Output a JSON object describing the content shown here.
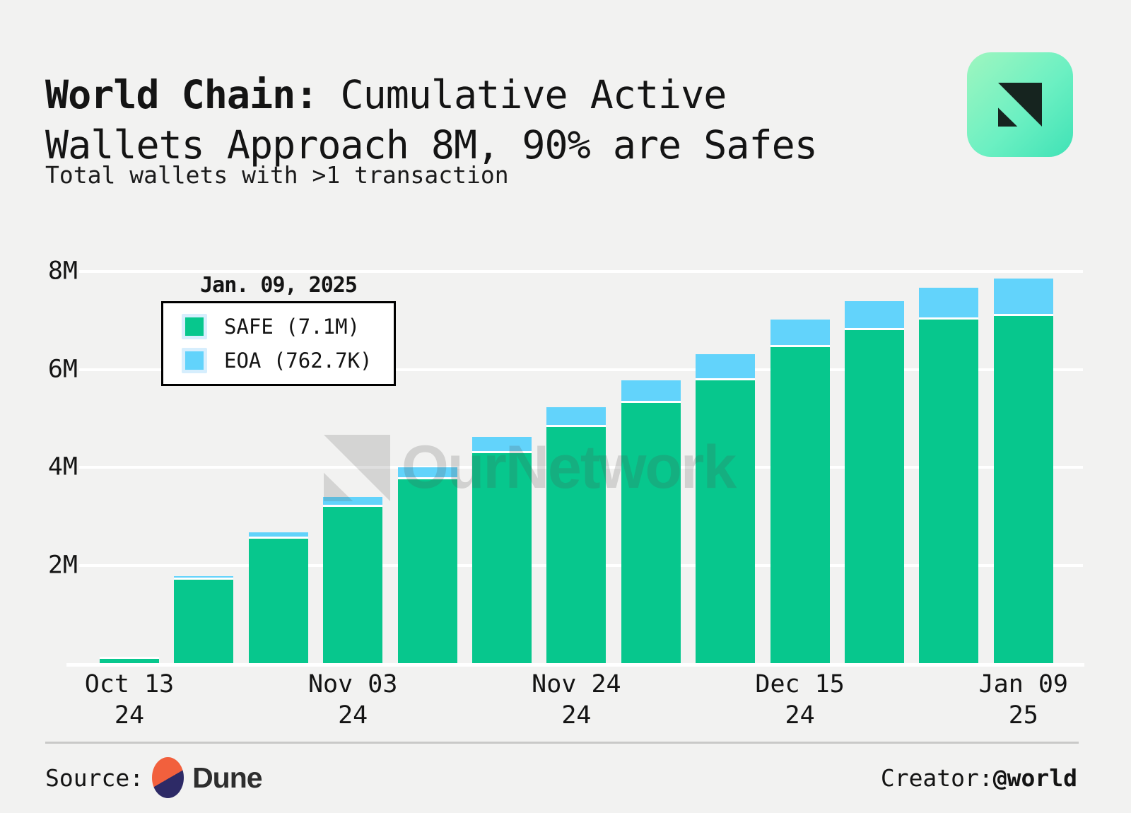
{
  "header": {
    "title_bold": "World Chain:",
    "title_regular": " Cumulative Active Wallets Approach 8M, 90% are Safes",
    "subtitle": "Total wallets with >1 transaction"
  },
  "tooltip": {
    "date": "Jan. 09, 2025",
    "items": [
      {
        "label": "SAFE (7.1M)",
        "color": "#07c78d"
      },
      {
        "label": "EOA (762.7K)",
        "color": "#62d3fb"
      }
    ]
  },
  "watermark": {
    "text": "OurNetwork"
  },
  "footer": {
    "source_label": "Source:",
    "source_name": "Dune",
    "creator_label": "Creator: ",
    "creator_handle": "@world"
  },
  "colors": {
    "background": "#f2f2f1",
    "safe_green": "#07c78d",
    "eoa_blue": "#62d3fb",
    "gridline": "#ffffff",
    "tooltip_border": "#000000",
    "logo_gradient_start": "#9ff6c0",
    "logo_gradient_end": "#3fe2b6",
    "dune_orange": "#f2603d",
    "dune_navy": "#2d2a66"
  },
  "chart_data": {
    "type": "bar",
    "stacked": true,
    "title": "World Chain: Cumulative Active Wallets Approach 8M, 90% are Safes",
    "subtitle": "Total wallets with >1 transaction",
    "unit": "millions of wallets",
    "ylim": [
      0,
      8
    ],
    "grid": "horizontal",
    "legend_position": "top-left tooltip",
    "yticks": [
      {
        "value": 8,
        "label": "8M"
      },
      {
        "value": 6,
        "label": "6M"
      },
      {
        "value": 4,
        "label": "4M"
      },
      {
        "value": 2,
        "label": "2M"
      }
    ],
    "xticks": [
      {
        "index": 0,
        "line1": "Oct 13",
        "line2": "24"
      },
      {
        "index": 3,
        "line1": "Nov 03",
        "line2": "24"
      },
      {
        "index": 6,
        "line1": "Nov 24",
        "line2": "24"
      },
      {
        "index": 9,
        "line1": "Dec 15",
        "line2": "24"
      },
      {
        "index": 12,
        "line1": "Jan 09",
        "line2": "25"
      }
    ],
    "series": [
      {
        "name": "SAFE",
        "color": "#07c78d",
        "values": [
          0.12,
          1.71,
          2.55,
          3.2,
          3.76,
          4.29,
          4.83,
          5.32,
          5.78,
          6.46,
          6.8,
          7.02,
          7.1
        ]
      },
      {
        "name": "EOA",
        "color": "#62d3fb",
        "values": [
          0.01,
          0.07,
          0.12,
          0.19,
          0.25,
          0.33,
          0.4,
          0.46,
          0.54,
          0.56,
          0.6,
          0.65,
          0.76
        ]
      }
    ],
    "highlight": {
      "bar_index": 12,
      "date": "Jan. 09, 2025",
      "safe_label": "SAFE (7.1M)",
      "eoa_label": "EOA (762.7K)"
    }
  }
}
